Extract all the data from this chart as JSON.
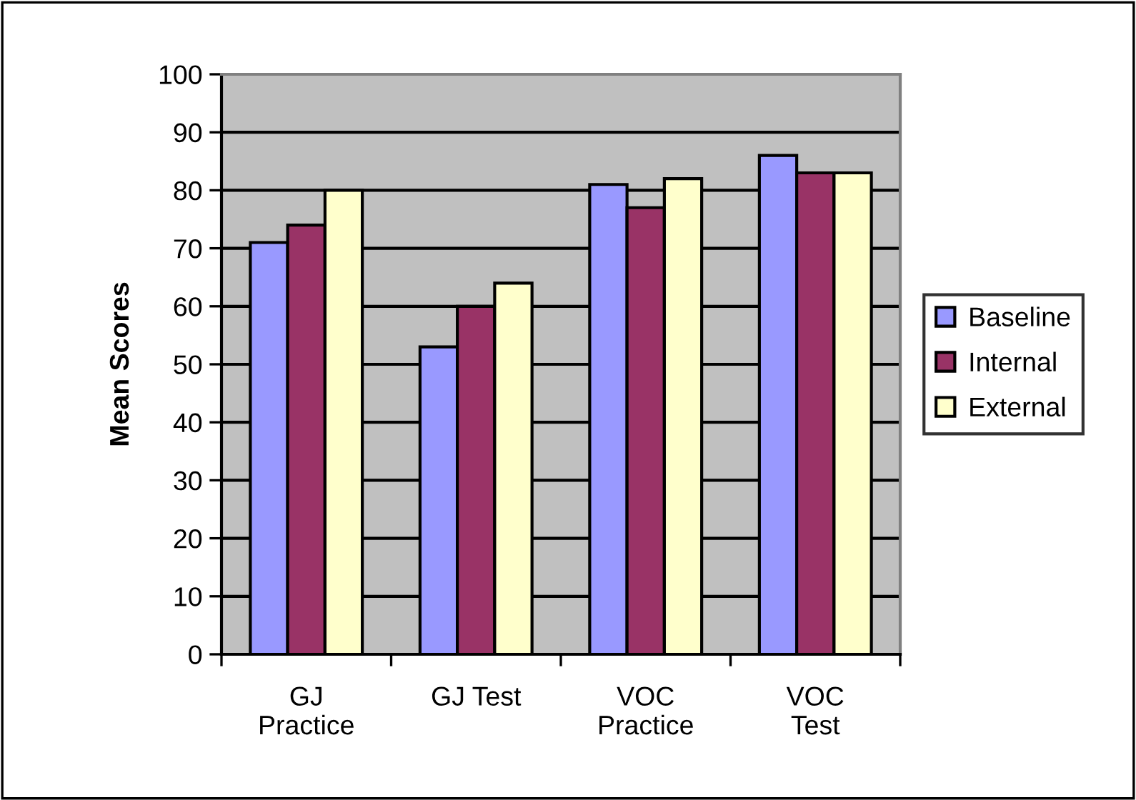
{
  "chart_data": {
    "type": "bar",
    "ylabel": "Mean Scores",
    "categories": [
      "GJ\nPractice",
      "GJ Test",
      "VOC\nPractice",
      "VOC\nTest"
    ],
    "series": [
      {
        "name": "Baseline",
        "color": "#9999ff",
        "values": [
          71,
          53,
          81,
          86
        ]
      },
      {
        "name": "Internal",
        "color": "#993366",
        "values": [
          74,
          60,
          77,
          83
        ]
      },
      {
        "name": "External",
        "color": "#ffffcc",
        "values": [
          80,
          64,
          82,
          83
        ]
      }
    ],
    "ylim": [
      0,
      100
    ],
    "yticks": [
      0,
      10,
      20,
      30,
      40,
      50,
      60,
      70,
      80,
      90,
      100
    ],
    "grid": "y",
    "legend": "right"
  }
}
